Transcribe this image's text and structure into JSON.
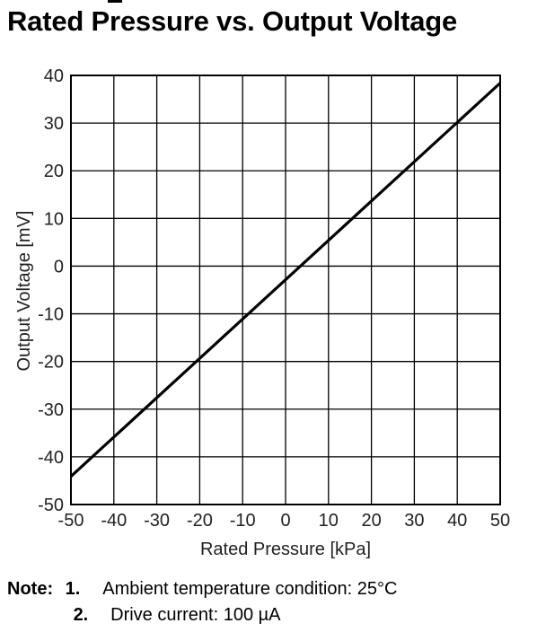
{
  "title": "Rated Pressure vs. Output Voltage",
  "chart_data": {
    "type": "line",
    "xlabel": "Rated Pressure [kPa]",
    "ylabel": "Output Voltage [mV]",
    "xlim": [
      -50,
      50
    ],
    "ylim": [
      -50,
      40
    ],
    "xticks": [
      -50,
      -40,
      -30,
      -20,
      -10,
      0,
      10,
      20,
      30,
      40,
      50
    ],
    "yticks": [
      40,
      30,
      20,
      10,
      0,
      -10,
      -20,
      -30,
      -40,
      -50
    ],
    "grid": true,
    "line_color": "#000000",
    "series": [
      {
        "x": [
          -50,
          50
        ],
        "y": [
          -44.1,
          38.4
        ]
      }
    ]
  },
  "notes": {
    "label": "Note:",
    "items": [
      {
        "num": "1.",
        "text": "Ambient temperature condition: 25°C"
      },
      {
        "num": "2.",
        "text": "Drive current: 100 µA"
      }
    ]
  }
}
